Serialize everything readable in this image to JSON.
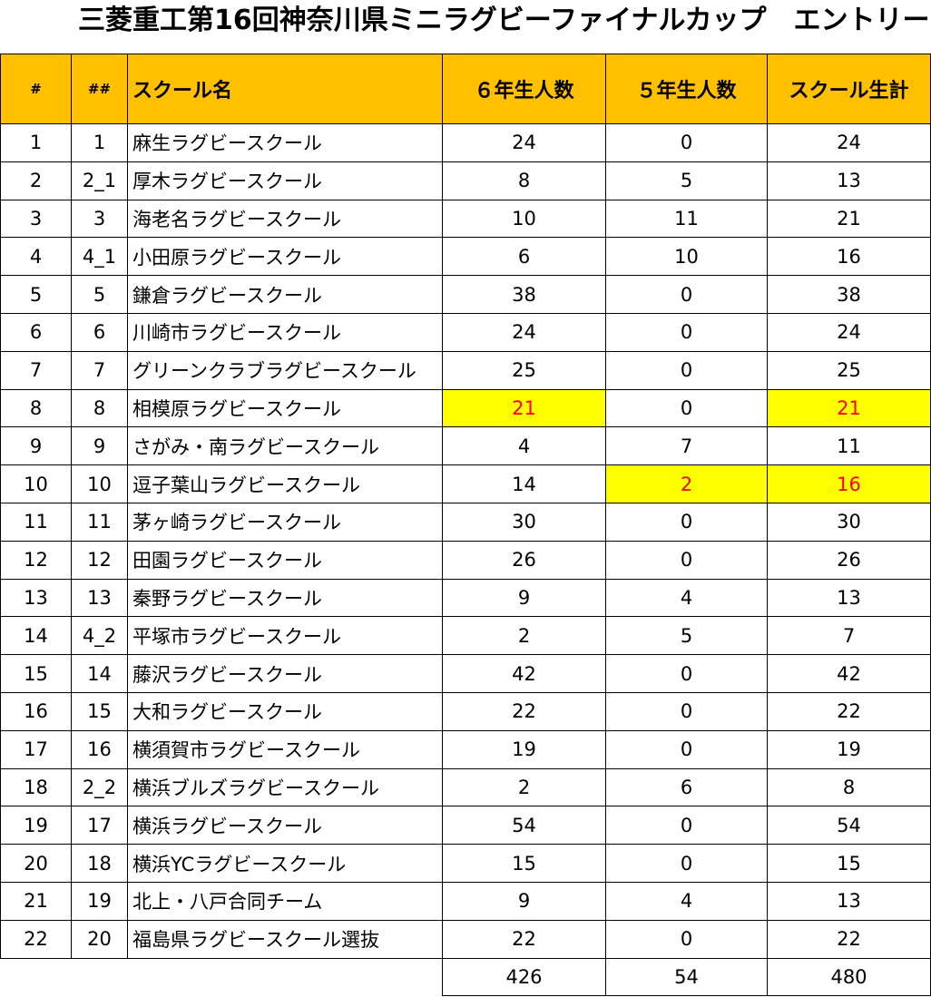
{
  "title": "三菱重工第16回神奈川県ミニラグビーファイナルカップ　エントリー",
  "headers": {
    "num": "#",
    "num2": "##",
    "school": "スクール名",
    "grade6": "６年生人数",
    "grade5": "５年生人数",
    "total": "スクール生計"
  },
  "rows": [
    {
      "num": "1",
      "num2": "1",
      "school": "麻生ラグビースクール",
      "grade6": "24",
      "grade5": "0",
      "total": "24"
    },
    {
      "num": "2",
      "num2": "2_1",
      "school": "厚木ラグビースクール",
      "grade6": "8",
      "grade5": "5",
      "total": "13"
    },
    {
      "num": "3",
      "num2": "3",
      "school": "海老名ラグビースクール",
      "grade6": "10",
      "grade5": "11",
      "total": "21"
    },
    {
      "num": "4",
      "num2": "4_1",
      "school": "小田原ラグビースクール",
      "grade6": "6",
      "grade5": "10",
      "total": "16"
    },
    {
      "num": "5",
      "num2": "5",
      "school": "鎌倉ラグビースクール",
      "grade6": "38",
      "grade5": "0",
      "total": "38"
    },
    {
      "num": "6",
      "num2": "6",
      "school": "川崎市ラグビースクール",
      "grade6": "24",
      "grade5": "0",
      "total": "24"
    },
    {
      "num": "7",
      "num2": "7",
      "school": "グリーンクラブラグビースクール",
      "grade6": "25",
      "grade5": "0",
      "total": "25"
    },
    {
      "num": "8",
      "num2": "8",
      "school": "相模原ラグビースクール",
      "grade6": "21",
      "grade5": "0",
      "total": "21"
    },
    {
      "num": "9",
      "num2": "9",
      "school": "さがみ・南ラグビースクール",
      "grade6": "4",
      "grade5": "7",
      "total": "11"
    },
    {
      "num": "10",
      "num2": "10",
      "school": "逗子葉山ラグビースクール",
      "grade6": "14",
      "grade5": "2",
      "total": "16"
    },
    {
      "num": "11",
      "num2": "11",
      "school": "茅ヶ崎ラグビースクール",
      "grade6": "30",
      "grade5": "0",
      "total": "30"
    },
    {
      "num": "12",
      "num2": "12",
      "school": "田園ラグビースクール",
      "grade6": "26",
      "grade5": "0",
      "total": "26"
    },
    {
      "num": "13",
      "num2": "13",
      "school": "秦野ラグビースクール",
      "grade6": "9",
      "grade5": "4",
      "total": "13"
    },
    {
      "num": "14",
      "num2": "4_2",
      "school": "平塚市ラグビースクール",
      "grade6": "2",
      "grade5": "5",
      "total": "7"
    },
    {
      "num": "15",
      "num2": "14",
      "school": "藤沢ラグビースクール",
      "grade6": "42",
      "grade5": "0",
      "total": "42"
    },
    {
      "num": "16",
      "num2": "15",
      "school": "大和ラグビースクール",
      "grade6": "22",
      "grade5": "0",
      "total": "22"
    },
    {
      "num": "17",
      "num2": "16",
      "school": "横須賀市ラグビースクール",
      "grade6": "19",
      "grade5": "0",
      "total": "19"
    },
    {
      "num": "18",
      "num2": "2_2",
      "school": "横浜ブルズラグビースクール",
      "grade6": "2",
      "grade5": "6",
      "total": "8"
    },
    {
      "num": "19",
      "num2": "17",
      "school": "横浜ラグビースクール",
      "grade6": "54",
      "grade5": "0",
      "total": "54"
    },
    {
      "num": "20",
      "num2": "18",
      "school": "横浜YCラグビースクール",
      "grade6": "15",
      "grade5": "0",
      "total": "15"
    },
    {
      "num": "21",
      "num2": "19",
      "school": "北上・八戸合同チーム",
      "grade6": "9",
      "grade5": "4",
      "total": "13"
    },
    {
      "num": "22",
      "num2": "20",
      "school": "福島県ラグビースクール選抜",
      "grade6": "22",
      "grade5": "0",
      "total": "22"
    }
  ],
  "highlights": [
    {
      "row": 8,
      "field": "grade6"
    },
    {
      "row": 8,
      "field": "total"
    },
    {
      "row": 10,
      "field": "grade5"
    },
    {
      "row": 10,
      "field": "total"
    }
  ],
  "totals": {
    "grade6": "426",
    "grade5": "54",
    "total": "480"
  },
  "colors": {
    "header_bg": "#ffc000",
    "highlight_bg": "#ffff00",
    "highlight_text": "#ff0000"
  }
}
